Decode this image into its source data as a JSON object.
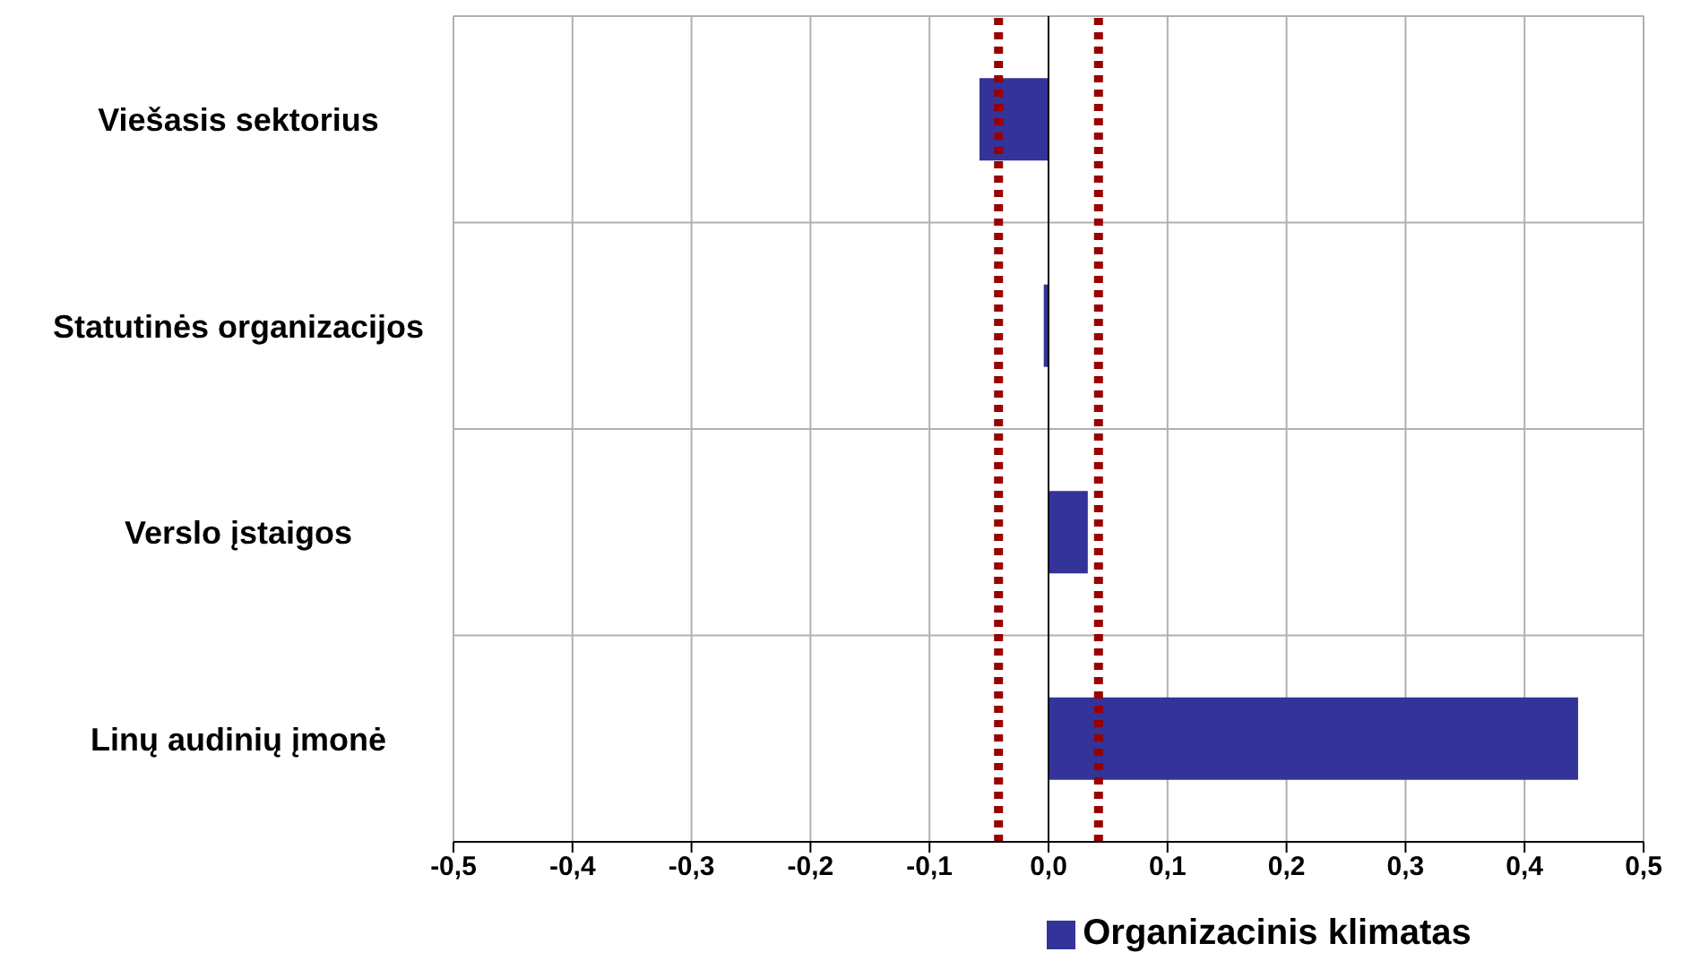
{
  "chart_data": {
    "type": "bar",
    "orientation": "horizontal",
    "categories": [
      "Viešasis sektorius",
      "Statutinės organizacijos",
      "Verslo įstaigos",
      "Linų audinių įmonė"
    ],
    "series": [
      {
        "name": "Organizacinis klimatas",
        "color": "#333399",
        "values": [
          -0.058,
          -0.004,
          0.033,
          0.445
        ]
      }
    ],
    "xlim": [
      -0.5,
      0.5
    ],
    "xticks": [
      {
        "value": -0.5,
        "label": "-0,5"
      },
      {
        "value": -0.4,
        "label": "-0,4"
      },
      {
        "value": -0.3,
        "label": "-0,3"
      },
      {
        "value": -0.2,
        "label": "-0,2"
      },
      {
        "value": -0.1,
        "label": "-0,1"
      },
      {
        "value": 0,
        "label": "0,0"
      },
      {
        "value": 0.1,
        "label": "0,1"
      },
      {
        "value": 0.2,
        "label": "0,2"
      },
      {
        "value": 0.3,
        "label": "0,3"
      },
      {
        "value": 0.4,
        "label": "0,4"
      },
      {
        "value": 0.5,
        "label": "0,5"
      }
    ],
    "ref_lines": [
      {
        "axis": "x",
        "value": -0.042,
        "color": "#990000",
        "line_style": "dotted"
      },
      {
        "axis": "x",
        "value": 0.042,
        "color": "#990000",
        "line_style": "dotted"
      }
    ],
    "grid": true,
    "legend": "bottom"
  }
}
